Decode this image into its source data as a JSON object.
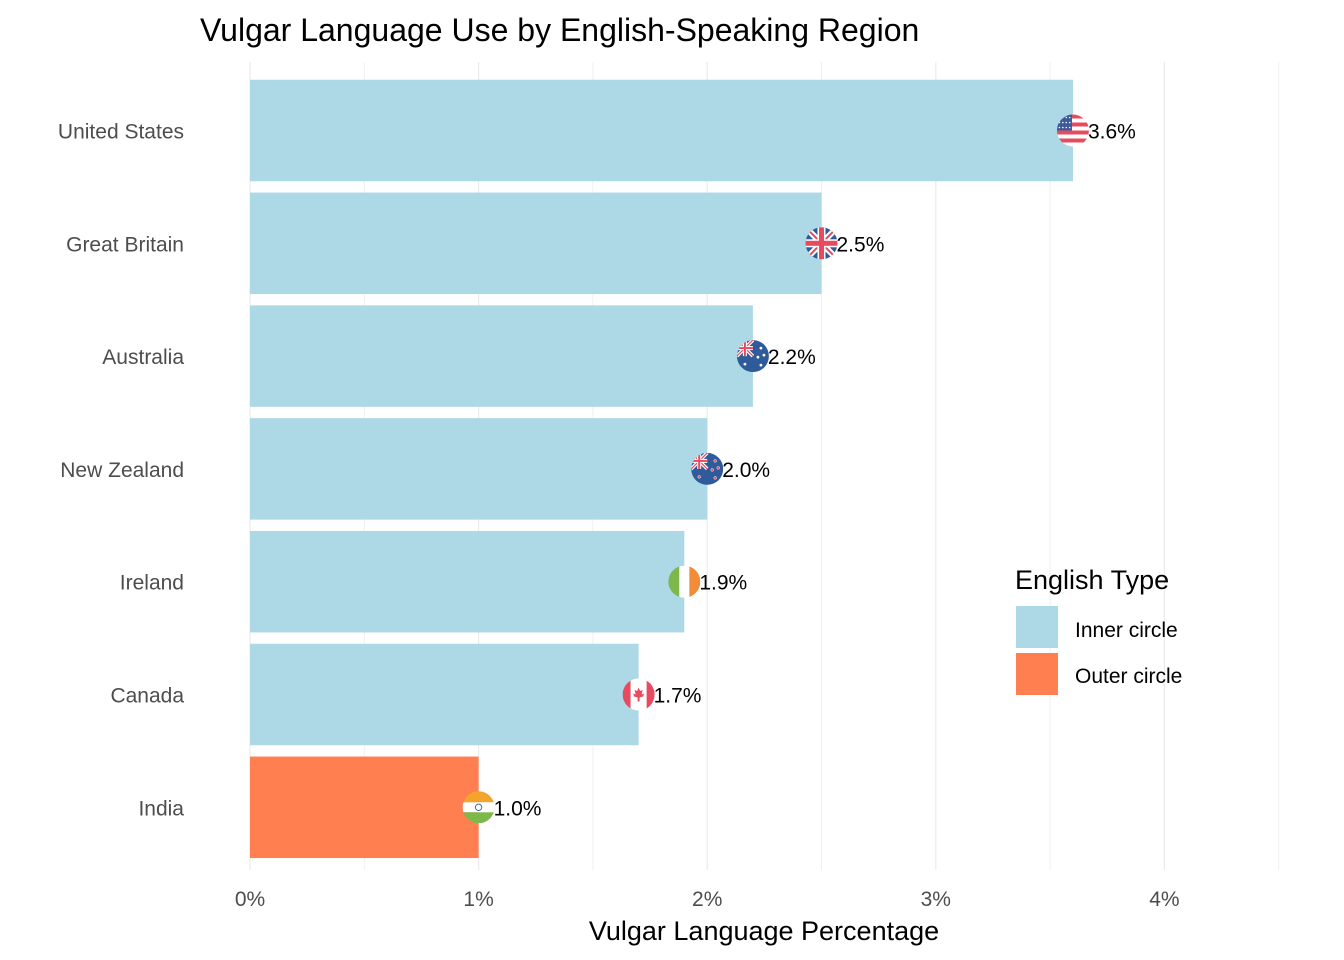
{
  "chart_data": {
    "type": "bar",
    "orientation": "horizontal",
    "title": "Vulgar Language Use by English-Speaking Region",
    "xlabel": "Vulgar Language Percentage",
    "ylabel": "",
    "xlim": [
      0,
      4.5
    ],
    "x_ticks": [
      0,
      1,
      2,
      3,
      4
    ],
    "x_tick_labels": [
      "0%",
      "1%",
      "2%",
      "3%",
      "4%"
    ],
    "grid": true,
    "categories": [
      "United States",
      "Great Britain",
      "Australia",
      "New Zealand",
      "Ireland",
      "Canada",
      "India"
    ],
    "values": [
      3.6,
      2.5,
      2.2,
      2.0,
      1.9,
      1.7,
      1.0
    ],
    "value_labels": [
      "3.6%",
      "2.5%",
      "2.2%",
      "2.0%",
      "1.9%",
      "1.7%",
      "1.0%"
    ],
    "groups": [
      "Inner circle",
      "Inner circle",
      "Inner circle",
      "Inner circle",
      "Inner circle",
      "Inner circle",
      "Outer circle"
    ],
    "flag_icons": [
      "us-flag-icon",
      "gb-flag-icon",
      "au-flag-icon",
      "nz-flag-icon",
      "ie-flag-icon",
      "ca-flag-icon",
      "in-flag-icon"
    ],
    "legend": {
      "title": "English Type",
      "placement": "right",
      "entries": [
        {
          "name": "Inner circle",
          "color": "#add8e6"
        },
        {
          "name": "Outer circle",
          "color": "#ff7f50"
        }
      ]
    }
  }
}
